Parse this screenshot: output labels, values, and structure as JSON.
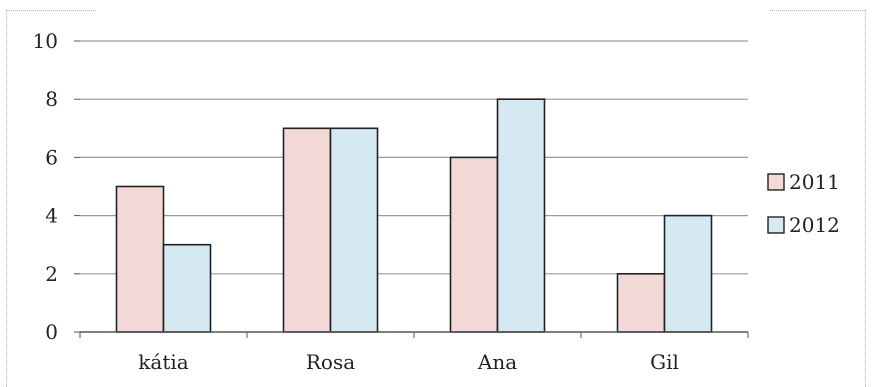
{
  "chart_data": {
    "type": "bar",
    "title": "",
    "xlabel": "",
    "ylabel": "",
    "categories": [
      "kátia",
      "Rosa",
      "Ana",
      "Gil"
    ],
    "series": [
      {
        "name": "2011",
        "values": [
          5,
          7,
          6,
          2
        ],
        "color": "#f2d9d7"
      },
      {
        "name": "2012",
        "values": [
          3,
          7,
          8,
          4
        ],
        "color": "#d4e9f2"
      }
    ],
    "ylim": [
      0,
      10
    ],
    "yticks": [
      "0",
      "2",
      "4",
      "6",
      "8",
      "10"
    ],
    "grid": true,
    "legend": "right",
    "colors": {
      "bar_stroke": "#222222",
      "grid": "#9a9a9a",
      "axis": "#555555"
    }
  }
}
